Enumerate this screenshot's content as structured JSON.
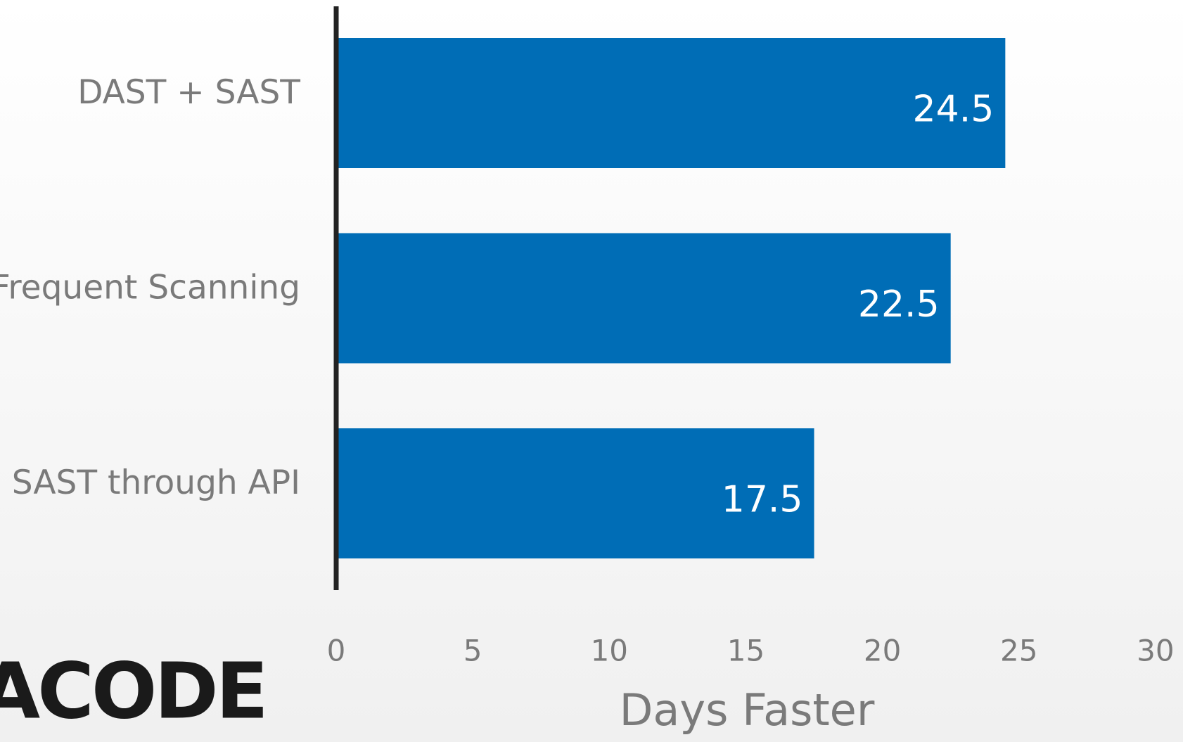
{
  "chart_data": {
    "type": "bar",
    "orientation": "horizontal",
    "categories": [
      "DAST + SAST",
      "Frequent Scanning",
      "SAST through API"
    ],
    "values": [
      24.5,
      22.5,
      17.5
    ],
    "color": "#006db6",
    "xlabel": "Days Faster",
    "xlim": [
      0,
      30
    ],
    "xticks": [
      0,
      5,
      10,
      15,
      20,
      25,
      30
    ],
    "grid": false,
    "logo": "ACODE"
  }
}
